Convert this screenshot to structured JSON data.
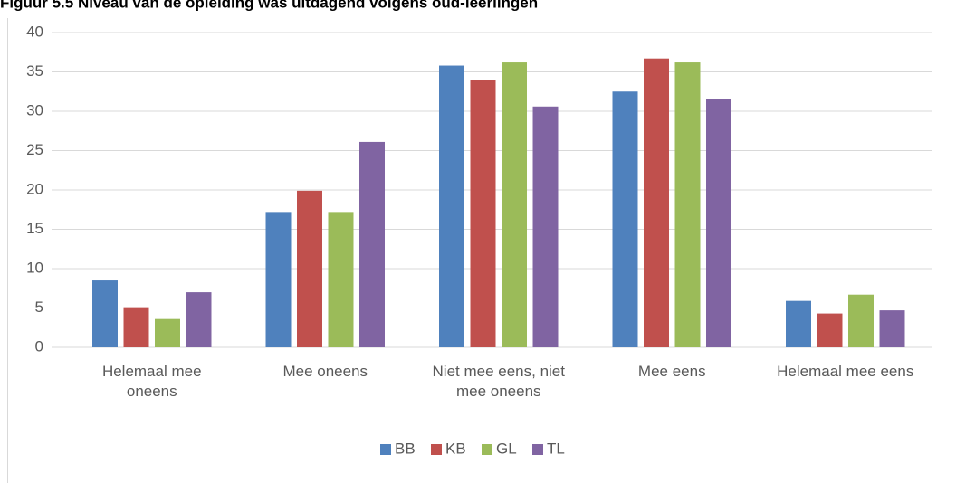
{
  "chart_data": {
    "type": "bar",
    "title": "Figuur 5.5 Niveau van de opleiding was uitdagend volgens oud-leerlingen",
    "categories": [
      "Helemaal mee oneens",
      "Mee oneens",
      "Niet mee eens, niet mee oneens",
      "Mee eens",
      "Helemaal mee eens"
    ],
    "series": [
      {
        "name": "BB",
        "color": "#4f81bd",
        "values": [
          8.5,
          17.2,
          35.8,
          32.5,
          5.9
        ]
      },
      {
        "name": "KB",
        "color": "#c0504d",
        "values": [
          5.1,
          19.9,
          34.0,
          36.7,
          4.3
        ]
      },
      {
        "name": "GL",
        "color": "#9bbb59",
        "values": [
          3.6,
          17.2,
          36.2,
          36.2,
          6.7
        ]
      },
      {
        "name": "TL",
        "color": "#8064a2",
        "values": [
          7.0,
          26.1,
          30.6,
          31.6,
          4.7
        ]
      }
    ],
    "ylim": [
      0,
      40
    ],
    "yticks": [
      0,
      5,
      10,
      15,
      20,
      25,
      30,
      35,
      40
    ],
    "grid": true,
    "legend": "bottom"
  }
}
